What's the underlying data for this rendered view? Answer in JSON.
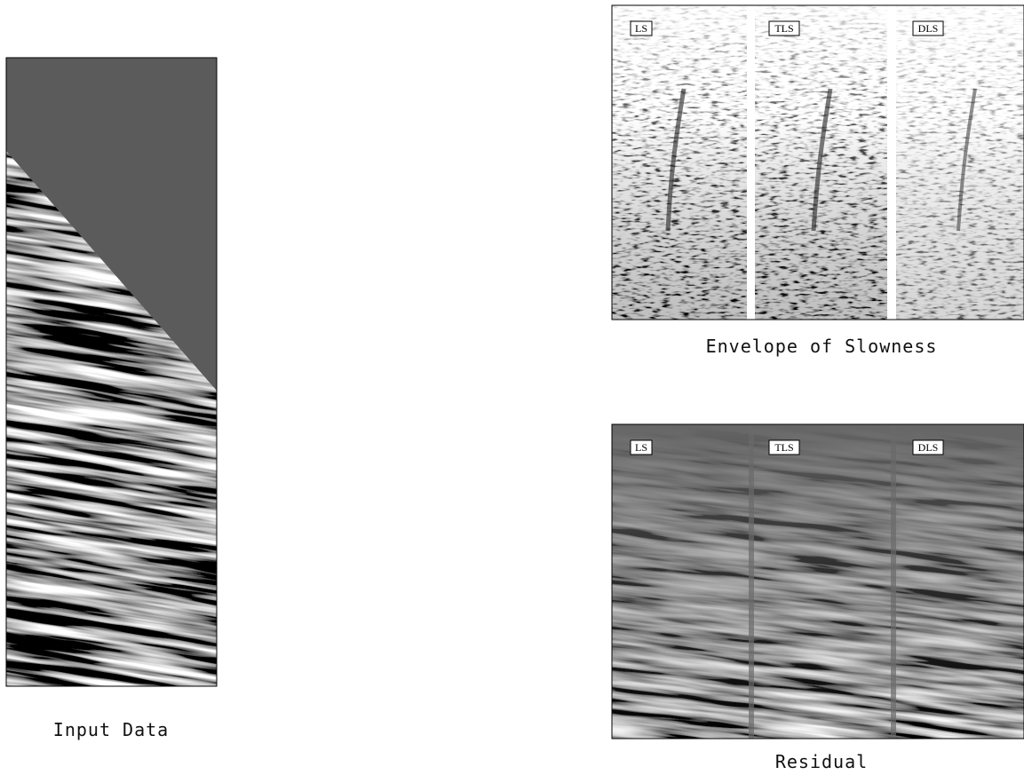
{
  "panels": [
    {
      "caption": "Input Data"
    },
    {
      "caption": "Envelope of Slowness",
      "labels": [
        "LS",
        "TLS",
        "DLS"
      ]
    },
    {
      "caption": "Residual",
      "labels": [
        "LS",
        "TLS",
        "DLS"
      ]
    }
  ]
}
